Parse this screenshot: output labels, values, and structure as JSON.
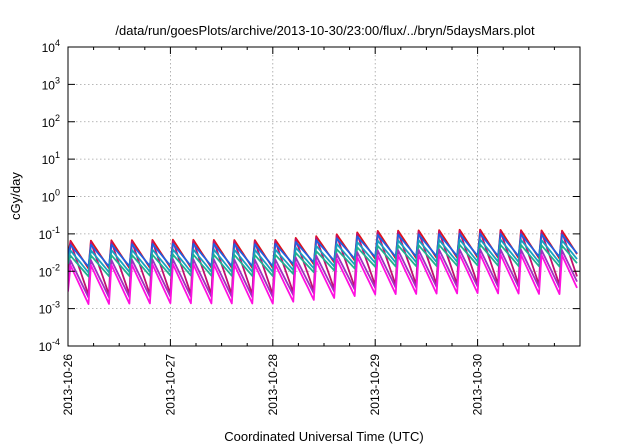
{
  "chart_data": {
    "type": "line",
    "title": "/data/run/goesPlots/archive/2013-10-30/23:00/flux/../bryn/5daysMars.plot",
    "xlabel": "Coordinated Universal Time (UTC)",
    "ylabel": "cGy/day",
    "yscale": "log",
    "ylim": [
      0.0001,
      10000
    ],
    "xlim": [
      "2013-10-26",
      "2013-10-31"
    ],
    "grid": true,
    "y_ticks": [
      {
        "base": "10",
        "exp": "-4"
      },
      {
        "base": "10",
        "exp": "-3"
      },
      {
        "base": "10",
        "exp": "-2"
      },
      {
        "base": "10",
        "exp": "-1"
      },
      {
        "base": "10",
        "exp": "0"
      },
      {
        "base": "10",
        "exp": "1"
      },
      {
        "base": "10",
        "exp": "2"
      },
      {
        "base": "10",
        "exp": "3"
      },
      {
        "base": "10",
        "exp": "4"
      }
    ],
    "x_ticks": [
      "2013-10-26",
      "2013-10-27",
      "2013-10-28",
      "2013-10-29",
      "2013-10-30"
    ],
    "oscillation": {
      "cycles_per_day": 5,
      "peak_curve_days": [
        0,
        1,
        2,
        2.5,
        3,
        4,
        5
      ],
      "peak_curve_values": [
        0.065,
        0.07,
        0.068,
        0.09,
        0.12,
        0.13,
        0.12
      ]
    },
    "series": [
      {
        "color": "#e0101a",
        "peak_ratio": 1.0,
        "trough_ratio": 0.18
      },
      {
        "color": "#c01070",
        "peak_ratio": 0.92,
        "trough_ratio": 0.035
      },
      {
        "color": "#2060e0",
        "peak_ratio": 0.78,
        "trough_ratio": 0.2
      },
      {
        "color": "#18a0c0",
        "peak_ratio": 0.55,
        "trough_ratio": 0.14
      },
      {
        "color": "#20b090",
        "peak_ratio": 0.4,
        "trough_ratio": 0.11
      },
      {
        "color": "#a030c0",
        "peak_ratio": 0.3,
        "trough_ratio": 0.03
      },
      {
        "color": "#ff10e0",
        "peak_ratio": 0.22,
        "trough_ratio": 0.02
      }
    ]
  }
}
